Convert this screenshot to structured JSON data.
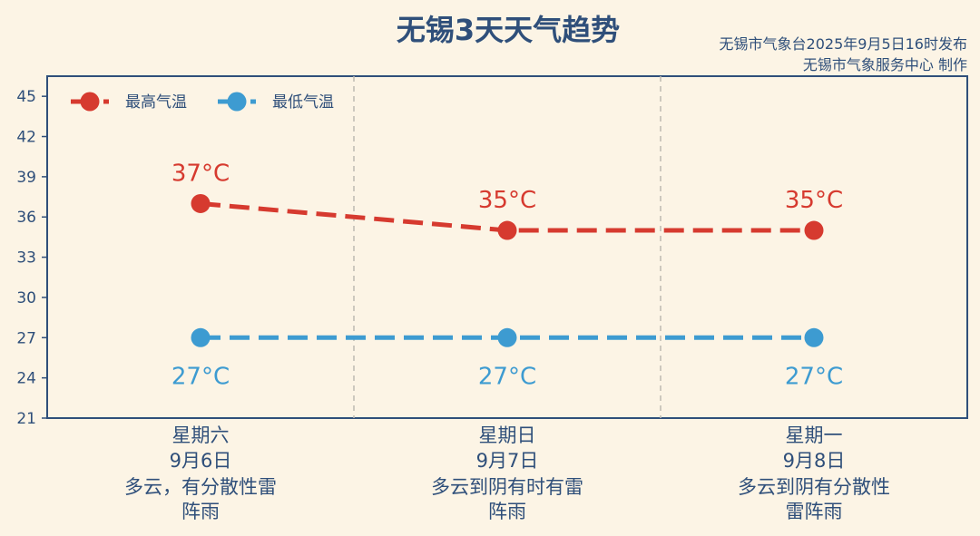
{
  "title": "无锡3天天气趋势",
  "issuer": {
    "line1": "无锡市气象台2025年9月5日16时发布",
    "line2": "无锡市气象服务中心  制作"
  },
  "colors": {
    "background": "#fcf4e5",
    "high": "#d63a2f",
    "low": "#3d9bd1",
    "axis": "#2f4f7a",
    "divider": "#bdbab2"
  },
  "chart_data": {
    "type": "line",
    "categories": [
      {
        "weekday": "星期六",
        "date": "9月6日",
        "weather": [
          "多云，有分散性雷",
          "阵雨"
        ]
      },
      {
        "weekday": "星期日",
        "date": "9月7日",
        "weather": [
          "多云到阴有时有雷",
          "阵雨"
        ]
      },
      {
        "weekday": "星期一",
        "date": "9月8日",
        "weather": [
          "多云到阴有分散性",
          "雷阵雨"
        ]
      }
    ],
    "series": [
      {
        "name": "最高气温",
        "values": [
          37,
          35,
          35
        ],
        "labels": [
          "37°C",
          "35°C",
          "35°C"
        ],
        "color": "#d63a2f",
        "label_position": "above"
      },
      {
        "name": "最低气温",
        "values": [
          27,
          27,
          27
        ],
        "labels": [
          "27°C",
          "27°C",
          "27°C"
        ],
        "color": "#3d9bd1",
        "label_position": "below"
      }
    ],
    "yticks": [
      21,
      24,
      27,
      30,
      33,
      36,
      39,
      42,
      45
    ],
    "ylim": [
      21,
      46.5
    ],
    "line_style": "dashed",
    "grid": false,
    "category_dividers": true,
    "legend_position": "top-left"
  }
}
